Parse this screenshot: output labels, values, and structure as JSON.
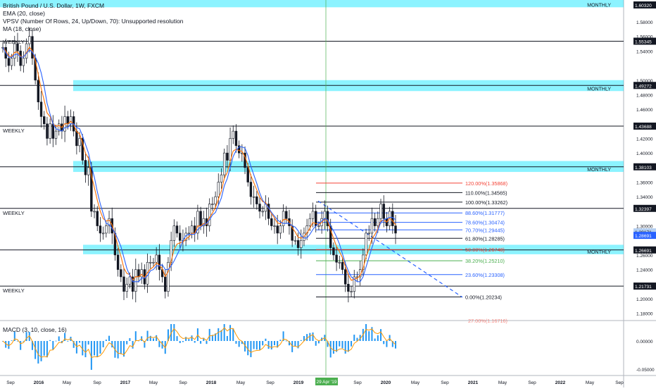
{
  "chart_data": {
    "type": "candlestick",
    "symbol_title": "British Pound / U.S. Dollar, 1W, FXCM",
    "indicators": [
      "EMA (20, close)",
      "VPSV (Number Of Rows, 24, Up/Down, 70): Unsupported resolution",
      "MA (18, close)"
    ],
    "x_tick_labels": [
      "Sep",
      "2016",
      "May",
      "Sep",
      "2017",
      "May",
      "Sep",
      "2018",
      "May",
      "Sep",
      "2019",
      "May",
      "Sep",
      "2020",
      "May",
      "Sep",
      "2021",
      "May",
      "Sep",
      "2022",
      "May",
      "Sep"
    ],
    "x_highlight_label": "29 Apr '19",
    "y_axis_ticks": [
      "1.58000",
      "1.56000",
      "1.54000",
      "1.50000",
      "1.48000",
      "1.46000",
      "1.42000",
      "1.40000",
      "1.36000",
      "1.34000",
      "1.30000",
      "1.26000",
      "1.24000",
      "1.20000",
      "1.18000"
    ],
    "y_range": [
      1.17,
      1.61
    ],
    "price_labels": [
      {
        "value": "1.60320",
        "kind": "level"
      },
      {
        "value": "1.55345",
        "kind": "level"
      },
      {
        "value": "1.49272",
        "kind": "level"
      },
      {
        "value": "1.43688",
        "kind": "level"
      },
      {
        "value": "1.38103",
        "kind": "level"
      },
      {
        "value": "1.32397",
        "kind": "level"
      },
      {
        "value": "1.29171",
        "kind": "current"
      },
      {
        "value": "1.28691",
        "kind": "ma"
      },
      {
        "value": "1.26691",
        "kind": "level"
      },
      {
        "value": "1.21731",
        "kind": "level"
      }
    ],
    "zones": [
      {
        "label": "MONTHLY",
        "low": 1.6,
        "high": 1.61
      },
      {
        "label": "MONTHLY",
        "low": 1.485,
        "high": 1.5
      },
      {
        "label": "MONTHLY",
        "low": 1.374,
        "high": 1.389
      },
      {
        "label": "MONTHLY",
        "low": 1.261,
        "high": 1.274
      }
    ],
    "weekly_levels": [
      {
        "label": "",
        "value": 1.55345
      },
      {
        "label": "WEEKLY",
        "value": 1.43688
      },
      {
        "label": "WEEKLY",
        "value": 1.32397
      },
      {
        "label": "WEEKLY",
        "value": 1.21731
      }
    ],
    "level_lines_unlabeled": [
      1.49272,
      1.38103,
      1.26691
    ],
    "weekly_top_label": "WEEKLY",
    "fibonacci": [
      {
        "label": "120.00%(1.35868)",
        "value": 1.35868
      },
      {
        "label": "110.00%(1.34565)",
        "value": 1.34565
      },
      {
        "label": "100.00%(1.33262)",
        "value": 1.33262
      },
      {
        "label": "88.60%(1.31777)",
        "value": 1.31777
      },
      {
        "label": "78.60%(1.30474)",
        "value": 1.30474
      },
      {
        "label": "70.70%(1.29445)",
        "value": 1.29445
      },
      {
        "label": "61.80%(1.28285)",
        "value": 1.28285
      },
      {
        "label": "50.00%(1.26748)",
        "value": 1.26748
      },
      {
        "label": "38.20%(1.25210)",
        "value": 1.2521
      },
      {
        "label": "23.60%(1.23308)",
        "value": 1.23308
      },
      {
        "label": "0.00%(1.20234)",
        "value": 1.20234
      },
      {
        "label": "27.00%(1.16716)",
        "value": 1.16716
      }
    ],
    "closes": [
      1.545,
      1.53,
      1.52,
      1.53,
      1.55,
      1.54,
      1.52,
      1.53,
      1.55,
      1.56,
      1.53,
      1.5,
      1.47,
      1.45,
      1.44,
      1.42,
      1.44,
      1.42,
      1.43,
      1.44,
      1.43,
      1.45,
      1.44,
      1.45,
      1.43,
      1.41,
      1.42,
      1.39,
      1.37,
      1.38,
      1.32,
      1.32,
      1.3,
      1.29,
      1.29,
      1.3,
      1.31,
      1.29,
      1.26,
      1.24,
      1.23,
      1.21,
      1.22,
      1.23,
      1.21,
      1.24,
      1.23,
      1.24,
      1.22,
      1.25,
      1.25,
      1.25,
      1.26,
      1.24,
      1.23,
      1.21,
      1.25,
      1.28,
      1.3,
      1.29,
      1.28,
      1.28,
      1.29,
      1.29,
      1.3,
      1.29,
      1.32,
      1.3,
      1.31,
      1.3,
      1.33,
      1.33,
      1.34,
      1.36,
      1.37,
      1.4,
      1.39,
      1.42,
      1.43,
      1.41,
      1.4,
      1.4,
      1.38,
      1.36,
      1.34,
      1.34,
      1.33,
      1.32,
      1.32,
      1.33,
      1.31,
      1.3,
      1.3,
      1.29,
      1.3,
      1.32,
      1.31,
      1.3,
      1.28,
      1.28,
      1.27,
      1.28,
      1.29,
      1.3,
      1.31,
      1.32,
      1.3,
      1.3,
      1.31,
      1.32,
      1.3,
      1.27,
      1.26,
      1.25,
      1.25,
      1.24,
      1.22,
      1.21,
      1.21,
      1.23,
      1.23,
      1.24,
      1.26,
      1.29,
      1.29,
      1.31,
      1.3,
      1.31,
      1.33,
      1.31,
      1.3,
      1.32,
      1.3,
      1.29
    ],
    "macd_title": "MACD (3, 10, close, 16)",
    "macd_axis_ticks": [
      "0.00000",
      "-0.05000"
    ],
    "macd_range": [
      -0.06,
      0.03
    ]
  }
}
